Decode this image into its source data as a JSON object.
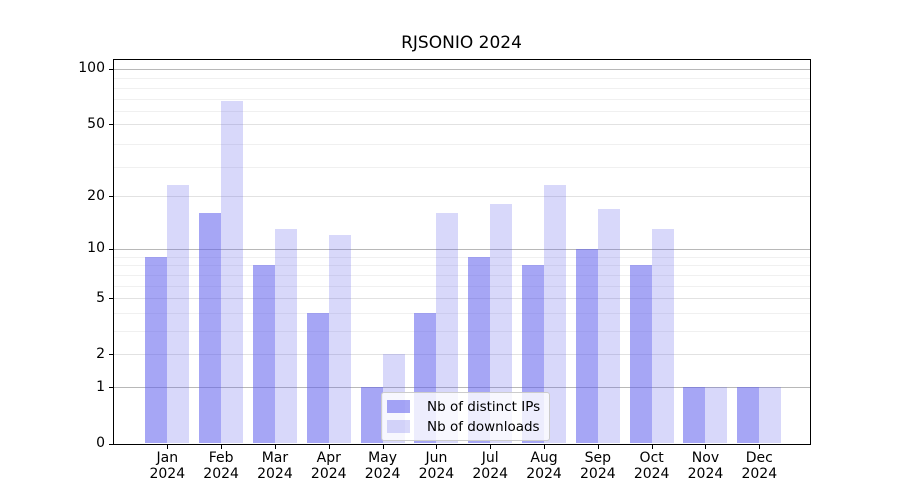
{
  "chart_data": {
    "type": "bar",
    "title": "RJSONIO 2024",
    "categories": [
      "Jan 2024",
      "Feb 2024",
      "Mar 2024",
      "Apr 2024",
      "May 2024",
      "Jun 2024",
      "Jul 2024",
      "Aug 2024",
      "Sep 2024",
      "Oct 2024",
      "Nov 2024",
      "Dec 2024"
    ],
    "series": [
      {
        "name": "Nb of distinct IPs",
        "color": "#5c5cec8c",
        "values": [
          9,
          16,
          8,
          4,
          1,
          4,
          9,
          8,
          10,
          8,
          1,
          1
        ]
      },
      {
        "name": "Nb of downloads",
        "color": "#5c5cec3d",
        "values": [
          23,
          67,
          13,
          12,
          2,
          16,
          18,
          23,
          17,
          13,
          1,
          1
        ]
      }
    ],
    "xlabel": "",
    "ylabel": "",
    "yscale": "log1p",
    "ylim": [
      0,
      113
    ],
    "yticks": [
      0,
      1,
      2,
      5,
      10,
      20,
      50,
      100
    ],
    "major_grid_ticks": [
      1,
      10,
      100
    ],
    "minor_gridlines_at_values": [
      3,
      4,
      6,
      7,
      8,
      9,
      29,
      39,
      59,
      69,
      79,
      89
    ],
    "grid": true,
    "legend_position": "lower center",
    "colors": {
      "grid_major": "#b8b8b8",
      "grid_mid": "#e2e2e2",
      "grid_minor": "#f0f0f0",
      "axis": "#000000",
      "background": "#ffffff"
    }
  }
}
